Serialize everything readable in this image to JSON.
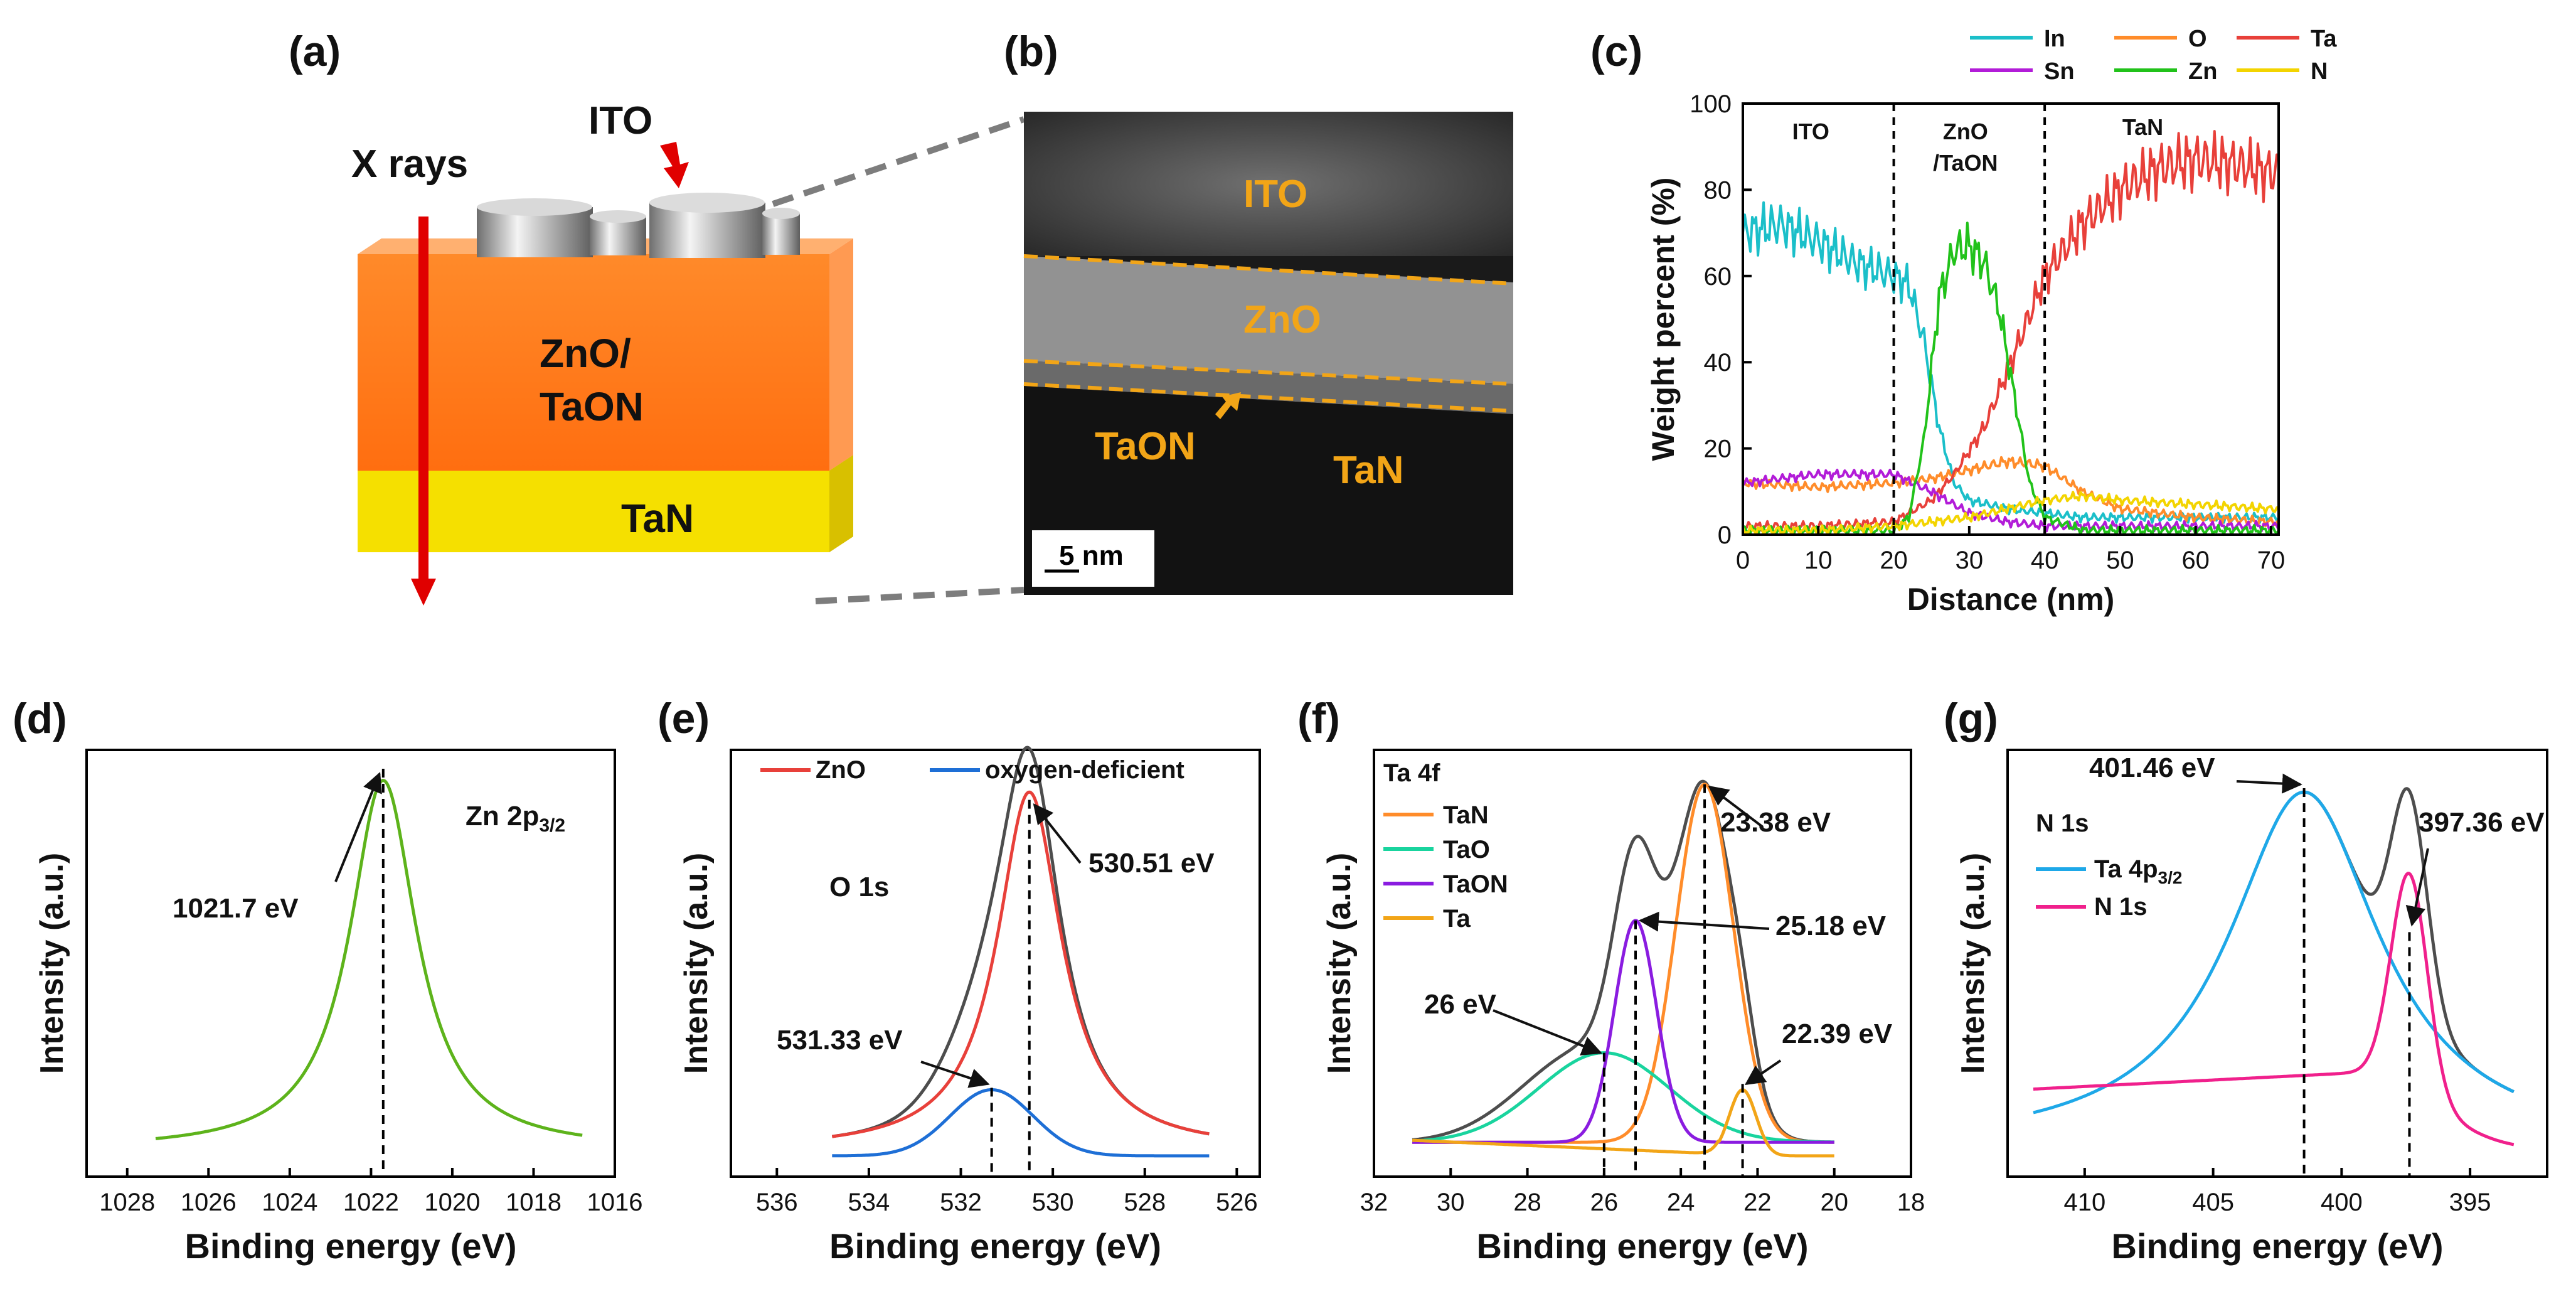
{
  "panel_labels": [
    "(a)",
    "(b)",
    "(c)",
    "(d)",
    "(e)",
    "(f)",
    "(g)"
  ],
  "colors": {
    "red": "#e8403a",
    "green": "#21c21a",
    "cyan": "#1bbfc9",
    "orange": "#ff8c2a",
    "purple": "#b21cd8",
    "yellow": "#f3d400",
    "dark": "#4d4d4d",
    "lime": "#5db31b",
    "blue": "#1e6fd6",
    "teal": "#19d49e",
    "violet": "#8a1ce0",
    "amber": "#f2a517",
    "sky": "#1ea8e8",
    "pink": "#f0208c"
  },
  "schematic": {
    "xrays": "X rays",
    "ito": "ITO",
    "zno_line1": "ZnO/",
    "zno_line2": "TaON",
    "tan": "TaN"
  },
  "tem": {
    "ito": "ITO",
    "zno": "ZnO",
    "taon": "TaON",
    "tan": "TaN",
    "scalebar": "5 nm"
  },
  "chart_data": [
    {
      "id": "c",
      "type": "line",
      "xlabel": "Distance (nm)",
      "ylabel": "Weight percent (%)",
      "xlim": [
        0,
        71
      ],
      "ylim": [
        0,
        100
      ],
      "xticks": [
        "0",
        "10",
        "20",
        "30",
        "40",
        "50",
        "60",
        "70"
      ],
      "yticks": [
        "0",
        "20",
        "40",
        "60",
        "80",
        "100"
      ],
      "regions": [
        "ITO",
        "ZnO",
        "/TaON",
        "TaN"
      ],
      "boundaries": [
        20,
        40
      ],
      "series": [
        {
          "name": "In",
          "color": "#1bbfc9",
          "x": [
            0,
            5,
            10,
            15,
            20,
            22,
            24,
            26,
            28,
            30,
            35,
            40,
            45,
            50,
            60,
            70
          ],
          "values": [
            70,
            72,
            68,
            63,
            60,
            58,
            45,
            25,
            12,
            8,
            6,
            5,
            4,
            4,
            4,
            4
          ]
        },
        {
          "name": "O",
          "color": "#ff8c2a",
          "x": [
            0,
            10,
            20,
            25,
            30,
            35,
            40,
            45,
            50,
            60,
            70
          ],
          "values": [
            12,
            11,
            12,
            13,
            15,
            17,
            16,
            10,
            6,
            4,
            3
          ]
        },
        {
          "name": "Ta",
          "color": "#e8403a",
          "x": [
            0,
            10,
            20,
            22,
            25,
            28,
            32,
            36,
            40,
            45,
            50,
            55,
            60,
            65,
            70
          ],
          "values": [
            2,
            2,
            3,
            5,
            8,
            14,
            25,
            42,
            60,
            72,
            80,
            85,
            87,
            86,
            84
          ]
        },
        {
          "name": "Sn",
          "color": "#b21cd8",
          "x": [
            0,
            10,
            20,
            25,
            30,
            35,
            40,
            45,
            50,
            60,
            70
          ],
          "values": [
            12,
            14,
            14,
            10,
            5,
            3,
            2,
            2,
            2,
            2,
            2
          ]
        },
        {
          "name": "Zn",
          "color": "#21c21a",
          "x": [
            0,
            20,
            22,
            24,
            26,
            28,
            30,
            32,
            34,
            36,
            38,
            40,
            45,
            50,
            70
          ],
          "values": [
            1,
            1,
            4,
            22,
            55,
            66,
            67,
            63,
            52,
            32,
            12,
            4,
            1,
            1,
            1
          ]
        },
        {
          "name": "N",
          "color": "#f3d400",
          "x": [
            0,
            10,
            20,
            30,
            40,
            45,
            50,
            60,
            70
          ],
          "values": [
            1,
            1,
            2,
            4,
            8,
            9,
            8,
            7,
            6
          ]
        }
      ]
    },
    {
      "id": "d",
      "type": "line",
      "xlabel": "Binding energy (eV)",
      "ylabel": "Intensity (a.u.)",
      "xlim": [
        1016,
        1029
      ],
      "reversed": true,
      "xticks": [
        "1028",
        "1026",
        "1024",
        "1022",
        "1020",
        "1018",
        "1016"
      ],
      "title": "Zn 2p",
      "title_sub": "3/2",
      "peaks": [
        {
          "label": "1021.7 eV",
          "position": 1021.7
        }
      ],
      "series": [
        {
          "name": "Zn 2p3/2",
          "color": "#5db31b",
          "x": [
            1027.2,
            1016.8
          ],
          "values": [
            0,
            0
          ],
          "shape": {
            "center": 1021.7,
            "height": 1,
            "width": 1.0,
            "base": 0.02
          }
        }
      ]
    },
    {
      "id": "e",
      "type": "line",
      "xlabel": "Binding energy (eV)",
      "ylabel": "Intensity (a.u.)",
      "xlim": [
        525.5,
        537
      ],
      "reversed": true,
      "xticks": [
        "536",
        "534",
        "532",
        "530",
        "528",
        "526"
      ],
      "title": "O 1s",
      "legend": [
        "ZnO",
        "oxygen-deficient"
      ],
      "peaks": [
        {
          "label": "530.51 eV",
          "position": 530.51
        },
        {
          "label": "531.33 eV",
          "position": 531.33
        }
      ],
      "series": [
        {
          "name": "envelope",
          "color": "#4d4d4d",
          "shape": {
            "center": 530.6,
            "height": 1.0,
            "width": 0.9,
            "base": 0.02
          }
        },
        {
          "name": "ZnO",
          "color": "#e8403a",
          "shape": {
            "center": 530.51,
            "height": 0.92,
            "width": 0.85,
            "base": 0.02
          }
        },
        {
          "name": "oxygen-deficient",
          "color": "#1e6fd6",
          "shape": {
            "center": 531.33,
            "height": 0.17,
            "width": 0.9,
            "base": 0.0
          }
        }
      ]
    },
    {
      "id": "f",
      "type": "line",
      "xlabel": "Binding energy (eV)",
      "ylabel": "Intensity (a.u.)",
      "xlim": [
        18,
        32
      ],
      "reversed": true,
      "xticks": [
        "32",
        "30",
        "28",
        "26",
        "24",
        "22",
        "20",
        "18"
      ],
      "title": "Ta 4f",
      "legend": [
        "TaN",
        "TaO",
        "TaON",
        "Ta"
      ],
      "peaks": [
        {
          "label": "23.38 eV",
          "position": 23.38
        },
        {
          "label": "25.18 eV",
          "position": 25.18
        },
        {
          "label": "26 eV",
          "position": 26.0
        },
        {
          "label": "22.39 eV",
          "position": 22.39
        }
      ],
      "series": [
        {
          "name": "envelope",
          "color": "#4d4d4d"
        },
        {
          "name": "TaN",
          "color": "#ff8c2a",
          "shape": {
            "center": 23.38,
            "height": 0.92,
            "width": 0.75
          }
        },
        {
          "name": "TaO",
          "color": "#19d49e",
          "shape": {
            "center": 26.0,
            "height": 0.23,
            "width": 1.7
          }
        },
        {
          "name": "TaON",
          "color": "#8a1ce0",
          "shape": {
            "center": 25.18,
            "height": 0.57,
            "width": 0.55
          }
        },
        {
          "name": "Ta",
          "color": "#f2a517",
          "shape": {
            "center": 22.39,
            "height": 0.17,
            "width": 0.35
          }
        }
      ]
    },
    {
      "id": "g",
      "type": "line",
      "xlabel": "Binding energy (eV)",
      "ylabel": "Intensity (a.u.)",
      "xlim": [
        392,
        413
      ],
      "reversed": true,
      "xticks": [
        "410",
        "405",
        "400",
        "395"
      ],
      "title": "N 1s",
      "legend": [
        "Ta 4p",
        "N 1s"
      ],
      "legend_sub": "3/2",
      "peaks": [
        {
          "label": "401.46 eV",
          "position": 401.46
        },
        {
          "label": "397.36 eV",
          "position": 397.36
        }
      ],
      "series": [
        {
          "name": "envelope",
          "color": "#4d4d4d"
        },
        {
          "name": "Ta 4p3/2",
          "color": "#1ea8e8",
          "shape": {
            "center": 401.46,
            "height": 0.92,
            "width": 3.6
          }
        },
        {
          "name": "N 1s",
          "color": "#f0208c",
          "shape": {
            "center": 397.36,
            "height": 0.55,
            "width": 0.7
          }
        }
      ]
    }
  ]
}
